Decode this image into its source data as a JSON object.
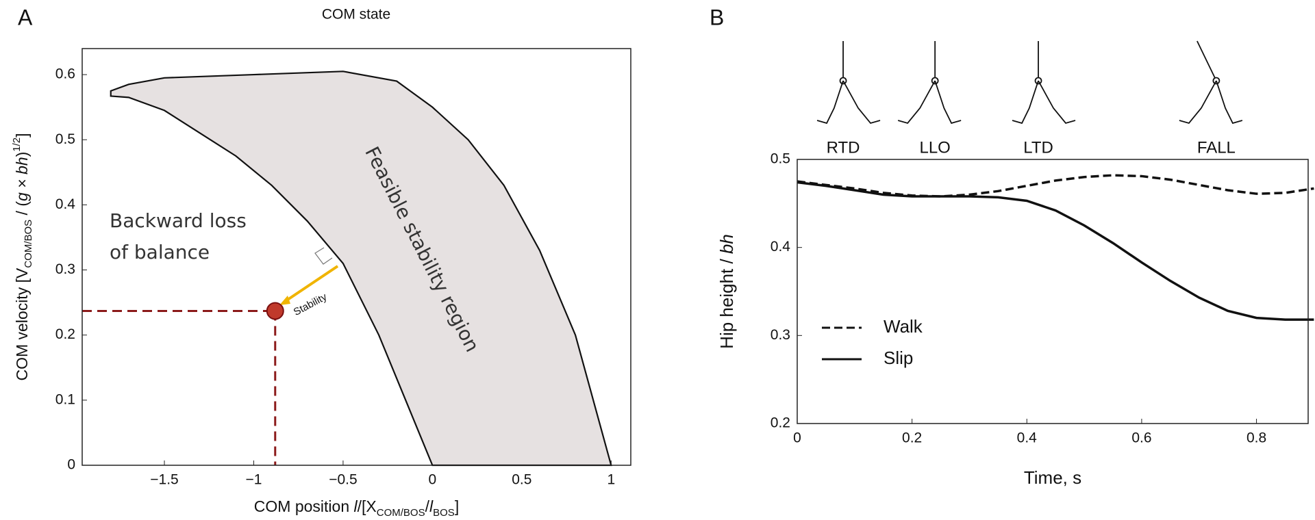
{
  "chart_data": [
    {
      "type": "area",
      "panel": "A",
      "title": "COM state",
      "xlabel": [
        {
          "text": "COM position "
        },
        {
          "text": "l",
          "italic": true
        },
        {
          "text": "/[X"
        },
        {
          "text": "COM/BOS",
          "sub": true
        },
        {
          "text": "/"
        },
        {
          "text": "l",
          "italic": true
        },
        {
          "text": "BOS",
          "sub": true
        },
        {
          "text": "]"
        }
      ],
      "ylabel": [
        {
          "text": "COM velocity [V"
        },
        {
          "text": "COM/BOS",
          "sub": true
        },
        {
          "text": " / ("
        },
        {
          "text": "g",
          "italic": true
        },
        {
          "text": " × "
        },
        {
          "text": "bh",
          "italic": true
        },
        {
          "text": ")"
        },
        {
          "text": "1/2",
          "sup": true
        },
        {
          "text": "]"
        }
      ],
      "xlim": [
        -1.96,
        1.11
      ],
      "ylim": [
        0,
        0.64
      ],
      "xticks": [
        {
          "value": -1.5,
          "label": "−1.5"
        },
        {
          "value": -1,
          "label": "−1"
        },
        {
          "value": -0.5,
          "label": "−0.5"
        },
        0,
        0.5,
        1
      ],
      "yticks": [
        0,
        0.1,
        0.2,
        0.3,
        0.4,
        0.5,
        0.6
      ],
      "series": [
        {
          "color": "#e6e1e1",
          "x": [
            -1.8,
            -1.7,
            -1.5,
            -1.3,
            -1.1,
            -0.9,
            -0.7,
            -0.5,
            -0.3,
            -0.15,
            0,
            1,
            0.8,
            0.6,
            0.4,
            0.2,
            0,
            -0.2,
            -0.5,
            -1,
            -1.5,
            -1.7,
            -1.8
          ],
          "values": [
            0.567,
            0.565,
            0.545,
            0.51,
            0.475,
            0.43,
            0.375,
            0.31,
            0.2,
            0.1,
            0,
            0,
            0.2,
            0.33,
            0.43,
            0.5,
            0.55,
            0.59,
            0.605,
            0.6,
            0.595,
            0.585,
            0.575
          ]
        }
      ],
      "point": {
        "x": -0.88,
        "y": 0.237,
        "color": "#c0392b"
      },
      "annotations": [
        "Backward loss",
        "of balance",
        "Feasible stability region",
        "Stability"
      ]
    },
    {
      "type": "line",
      "panel": "B",
      "xlabel": [
        {
          "text": "Time, s"
        }
      ],
      "ylabel": [
        {
          "text": "Hip height / "
        },
        {
          "text": "bh",
          "italic": true
        }
      ],
      "xlim": [
        0,
        0.89
      ],
      "ylim": [
        0.2,
        0.5
      ],
      "xticks": [
        0,
        0.2,
        0.4,
        0.6,
        0.8
      ],
      "yticks": [
        0.2,
        0.3,
        0.4,
        0.5
      ],
      "x": [
        0,
        0.05,
        0.1,
        0.15,
        0.2,
        0.25,
        0.3,
        0.35,
        0.4,
        0.45,
        0.5,
        0.55,
        0.6,
        0.65,
        0.7,
        0.75,
        0.8,
        0.85,
        0.9
      ],
      "series": [
        {
          "name": "Walk",
          "color": "#111111",
          "dash": true,
          "values": [
            0.475,
            0.471,
            0.467,
            0.462,
            0.459,
            0.458,
            0.46,
            0.464,
            0.47,
            0.476,
            0.48,
            0.482,
            0.481,
            0.477,
            0.471,
            0.465,
            0.461,
            0.462,
            0.467
          ]
        },
        {
          "name": "Slip",
          "color": "#111111",
          "dash": false,
          "values": [
            0.474,
            0.47,
            0.465,
            0.46,
            0.458,
            0.458,
            0.458,
            0.457,
            0.453,
            0.442,
            0.425,
            0.405,
            0.383,
            0.362,
            0.343,
            0.328,
            0.32,
            0.318,
            0.318
          ]
        }
      ],
      "legend": "lower left",
      "events": [
        {
          "label": "RTD",
          "x": 0.08
        },
        {
          "label": "LLO",
          "x": 0.24
        },
        {
          "label": "LTD",
          "x": 0.42
        },
        {
          "label": "FALL",
          "x": 0.73
        }
      ]
    }
  ]
}
